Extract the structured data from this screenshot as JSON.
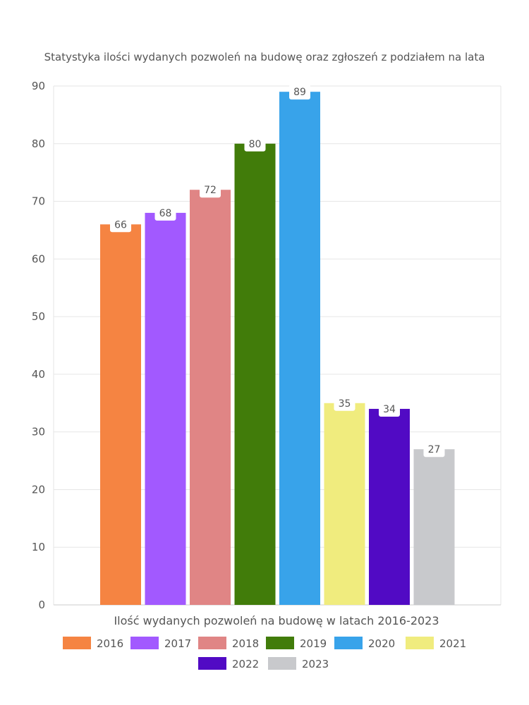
{
  "chart_data": {
    "type": "bar",
    "title": "Statystyka ilości wydanych pozwoleń na budowę oraz zgłoszeń z podziałem na lata",
    "xlabel": "Ilość wydanych pozwoleń na budowę w latach 2016-2023",
    "ylabel": "",
    "ylim": [
      0,
      90
    ],
    "yticks": [
      0,
      10,
      20,
      30,
      40,
      50,
      60,
      70,
      80,
      90
    ],
    "grid": true,
    "legend_position": "bottom",
    "series": [
      {
        "name": "2016",
        "value": 66,
        "color": "#f58442"
      },
      {
        "name": "2017",
        "value": 68,
        "color": "#a259ff"
      },
      {
        "name": "2018",
        "value": 72,
        "color": "#e08585"
      },
      {
        "name": "2019",
        "value": 80,
        "color": "#417c0a"
      },
      {
        "name": "2020",
        "value": 89,
        "color": "#38a3ea"
      },
      {
        "name": "2021",
        "value": 35,
        "color": "#f0ec7e"
      },
      {
        "name": "2022",
        "value": 34,
        "color": "#510ac4"
      },
      {
        "name": "2023",
        "value": 27,
        "color": "#c8c9cc"
      }
    ]
  }
}
